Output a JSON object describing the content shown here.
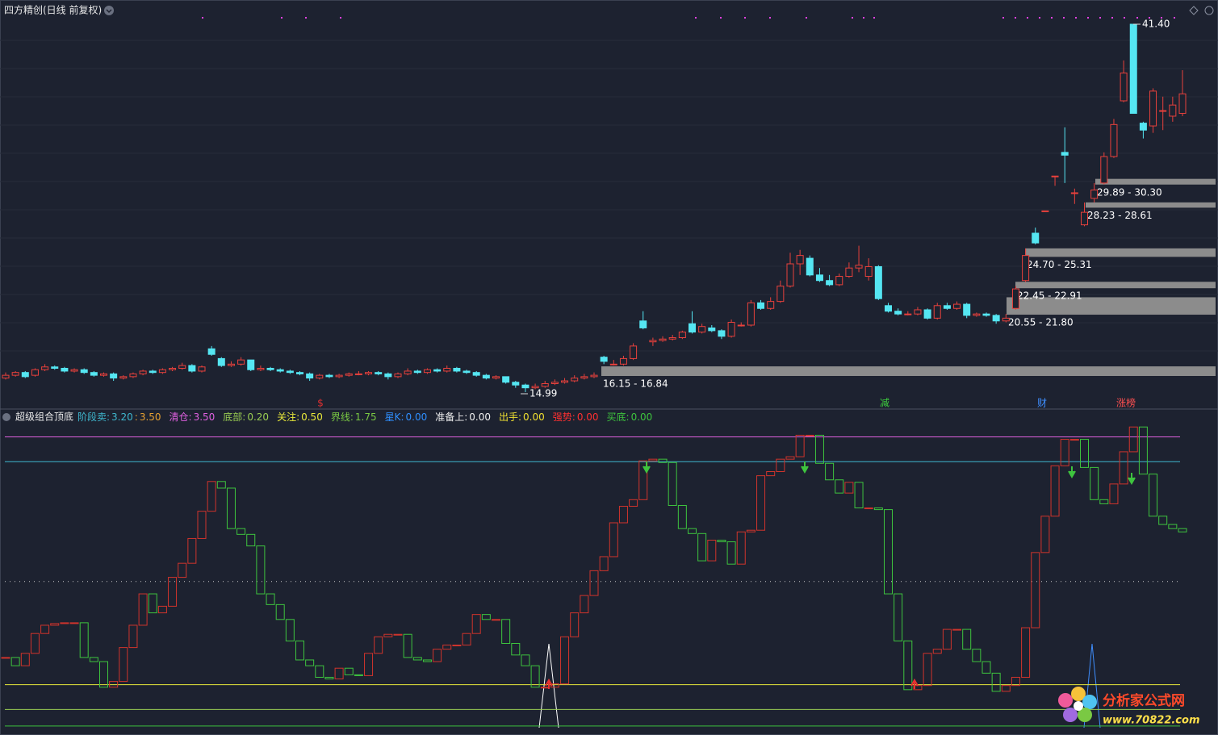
{
  "chart_data": [
    {
      "type": "candlestick",
      "title": "四方精创(日线 前复权)",
      "up_color": "#e8413c",
      "down_color": "#55e6f2",
      "zone_color": "#8c8c8c",
      "ylim": [
        14.76,
        41.98
      ],
      "candles": [
        [
          16.0,
          16.4,
          15.9,
          16.2
        ],
        [
          16.2,
          16.5,
          16.1,
          16.4
        ],
        [
          16.4,
          16.5,
          16.0,
          16.1
        ],
        [
          16.2,
          16.7,
          16.1,
          16.6
        ],
        [
          16.6,
          17.0,
          16.5,
          16.8
        ],
        [
          16.8,
          16.9,
          16.6,
          16.7
        ],
        [
          16.7,
          16.8,
          16.4,
          16.5
        ],
        [
          16.5,
          16.7,
          16.4,
          16.6
        ],
        [
          16.6,
          16.7,
          16.3,
          16.4
        ],
        [
          16.4,
          16.5,
          16.1,
          16.2
        ],
        [
          16.2,
          16.4,
          16.1,
          16.3
        ],
        [
          16.3,
          16.4,
          15.8,
          16.0
        ],
        [
          16.0,
          16.2,
          15.9,
          16.1
        ],
        [
          16.1,
          16.4,
          16.0,
          16.3
        ],
        [
          16.3,
          16.6,
          16.2,
          16.5
        ],
        [
          16.5,
          16.6,
          16.3,
          16.4
        ],
        [
          16.4,
          16.7,
          16.3,
          16.6
        ],
        [
          16.6,
          16.8,
          16.5,
          16.7
        ],
        [
          16.7,
          17.1,
          16.6,
          16.9
        ],
        [
          16.9,
          17.0,
          16.4,
          16.5
        ],
        [
          16.5,
          16.9,
          16.4,
          16.8
        ],
        [
          18.1,
          18.3,
          17.6,
          17.7
        ],
        [
          17.4,
          17.5,
          16.8,
          16.9
        ],
        [
          16.9,
          17.2,
          16.8,
          17.0
        ],
        [
          17.0,
          17.5,
          16.9,
          17.3
        ],
        [
          17.3,
          17.3,
          16.5,
          16.6
        ],
        [
          16.6,
          16.9,
          16.5,
          16.7
        ],
        [
          16.7,
          16.8,
          16.5,
          16.6
        ],
        [
          16.6,
          16.7,
          16.4,
          16.5
        ],
        [
          16.5,
          16.6,
          16.3,
          16.4
        ],
        [
          16.4,
          16.5,
          16.2,
          16.3
        ],
        [
          16.3,
          16.4,
          15.8,
          16.0
        ],
        [
          16.0,
          16.3,
          15.9,
          16.2
        ],
        [
          16.2,
          16.3,
          16.0,
          16.1
        ],
        [
          16.1,
          16.3,
          16.0,
          16.2
        ],
        [
          16.2,
          16.4,
          16.1,
          16.3
        ],
        [
          16.3,
          16.5,
          16.2,
          16.3
        ],
        [
          16.3,
          16.5,
          16.2,
          16.4
        ],
        [
          16.4,
          16.5,
          16.2,
          16.3
        ],
        [
          16.3,
          16.4,
          15.9,
          16.1
        ],
        [
          16.1,
          16.4,
          16.0,
          16.3
        ],
        [
          16.3,
          16.7,
          16.2,
          16.5
        ],
        [
          16.5,
          16.6,
          16.3,
          16.4
        ],
        [
          16.4,
          16.7,
          16.3,
          16.6
        ],
        [
          16.6,
          16.7,
          16.4,
          16.5
        ],
        [
          16.5,
          16.9,
          16.4,
          16.7
        ],
        [
          16.7,
          16.8,
          16.4,
          16.5
        ],
        [
          16.5,
          16.6,
          16.3,
          16.4
        ],
        [
          16.4,
          16.5,
          16.1,
          16.2
        ],
        [
          16.2,
          16.3,
          15.9,
          16.0
        ],
        [
          16.0,
          16.2,
          15.9,
          16.1
        ],
        [
          16.1,
          16.1,
          15.6,
          15.7
        ],
        [
          15.7,
          15.8,
          15.3,
          15.5
        ],
        [
          15.5,
          15.6,
          14.99,
          15.3
        ],
        [
          15.3,
          15.6,
          15.2,
          15.4
        ],
        [
          15.4,
          15.8,
          15.3,
          15.6
        ],
        [
          15.6,
          15.9,
          15.5,
          15.7
        ],
        [
          15.7,
          16.0,
          15.6,
          15.8
        ],
        [
          15.8,
          16.2,
          15.7,
          16.0
        ],
        [
          16.0,
          16.3,
          15.9,
          16.1
        ],
        [
          16.1,
          16.4,
          16.0,
          16.2
        ],
        [
          17.5,
          17.6,
          17.0,
          17.2
        ],
        [
          17.0,
          17.3,
          16.9,
          17.0
        ],
        [
          17.0,
          17.6,
          16.9,
          17.4
        ],
        [
          17.4,
          18.5,
          17.3,
          18.3
        ],
        [
          20.1,
          20.8,
          19.5,
          19.6
        ],
        [
          18.6,
          18.9,
          18.3,
          18.7
        ],
        [
          18.7,
          19.0,
          18.6,
          18.8
        ],
        [
          18.8,
          19.1,
          18.7,
          18.9
        ],
        [
          18.9,
          19.4,
          18.8,
          19.3
        ],
        [
          19.9,
          20.8,
          19.2,
          19.3
        ],
        [
          19.3,
          19.9,
          19.2,
          19.7
        ],
        [
          19.6,
          19.8,
          19.3,
          19.4
        ],
        [
          19.4,
          19.5,
          18.8,
          19.0
        ],
        [
          19.0,
          20.2,
          18.9,
          20.0
        ],
        [
          19.8,
          20.0,
          19.7,
          19.8
        ],
        [
          19.8,
          21.6,
          19.7,
          21.4
        ],
        [
          21.4,
          21.6,
          20.9,
          21.0
        ],
        [
          21.0,
          21.8,
          20.9,
          21.5
        ],
        [
          21.5,
          23.0,
          21.4,
          22.6
        ],
        [
          22.6,
          25.0,
          22.5,
          24.2
        ],
        [
          24.2,
          25.2,
          23.4,
          24.8
        ],
        [
          24.6,
          24.8,
          23.3,
          23.4
        ],
        [
          23.4,
          23.9,
          22.9,
          23.0
        ],
        [
          23.0,
          23.4,
          22.6,
          22.7
        ],
        [
          22.7,
          23.5,
          22.6,
          23.3
        ],
        [
          23.3,
          24.3,
          23.2,
          23.9
        ],
        [
          23.9,
          25.5,
          23.6,
          24.1
        ],
        [
          23.3,
          24.6,
          23.0,
          24.0
        ],
        [
          24.0,
          24.1,
          21.6,
          21.7
        ],
        [
          21.2,
          21.4,
          20.7,
          20.8
        ],
        [
          20.8,
          21.0,
          20.5,
          20.6
        ],
        [
          20.6,
          20.8,
          20.5,
          20.6
        ],
        [
          20.6,
          21.1,
          20.5,
          20.9
        ],
        [
          20.9,
          21.0,
          20.2,
          20.3
        ],
        [
          20.3,
          21.4,
          20.2,
          21.2
        ],
        [
          21.2,
          21.4,
          20.9,
          21.0
        ],
        [
          21.0,
          21.5,
          20.9,
          21.3
        ],
        [
          21.3,
          21.4,
          20.3,
          20.5
        ],
        [
          20.5,
          20.7,
          20.4,
          20.6
        ],
        [
          20.6,
          20.7,
          20.4,
          20.5
        ],
        [
          20.5,
          20.6,
          19.9,
          20.1
        ],
        [
          20.1,
          20.6,
          20.0,
          20.3
        ],
        [
          21.0,
          22.6,
          20.9,
          22.4
        ],
        [
          23.0,
          25.3,
          22.9,
          24.8
        ],
        [
          26.4,
          26.8,
          25.6,
          25.7
        ],
        [
          28.0,
          28.0,
          28.0,
          28.0
        ],
        [
          30.5,
          30.5,
          29.8,
          30.5
        ],
        [
          32.2,
          34.0,
          30.0,
          32.0
        ],
        [
          29.3,
          29.6,
          28.5,
          29.3
        ],
        [
          27.0,
          28.6,
          26.9,
          27.9
        ],
        [
          28.9,
          30.0,
          28.6,
          29.5
        ],
        [
          30.0,
          32.2,
          29.9,
          31.9
        ],
        [
          31.9,
          34.6,
          31.8,
          34.2
        ],
        [
          35.9,
          38.8,
          35.8,
          37.9
        ],
        [
          41.4,
          41.4,
          35.0,
          35.0
        ],
        [
          34.3,
          34.4,
          33.2,
          33.8
        ],
        [
          34.1,
          36.8,
          33.6,
          36.6
        ],
        [
          35.2,
          36.2,
          33.8,
          35.2
        ],
        [
          34.8,
          36.2,
          34.4,
          35.6
        ],
        [
          35.0,
          38.1,
          34.8,
          36.4
        ]
      ],
      "zones": [
        {
          "label": "16.15 - 16.84",
          "low": 16.15,
          "high": 16.84
        },
        {
          "label": "20.55 - 21.80",
          "low": 20.55,
          "high": 21.8
        },
        {
          "label": "22.45 - 22.91",
          "low": 22.45,
          "high": 22.91
        },
        {
          "label": "24.70 - 25.31",
          "low": 24.7,
          "high": 25.31
        },
        {
          "label": "28.23 - 28.61",
          "low": 28.23,
          "high": 28.61
        },
        {
          "label": "29.89 - 30.30",
          "low": 29.89,
          "high": 30.3
        }
      ],
      "extremes": [
        {
          "value": 41.4,
          "label": "41.40"
        },
        {
          "value": 14.99,
          "label": "14.99"
        }
      ],
      "signals": [
        {
          "text": "$",
          "color": "#e03030"
        },
        {
          "text": "减",
          "color": "#3dcc3d"
        },
        {
          "text": "财",
          "color": "#3f8fff"
        },
        {
          "text": "涨榜",
          "color": "#ff5050"
        }
      ]
    },
    {
      "type": "step",
      "title": "超级组合顶底",
      "up_color": "#d0342c",
      "down_color": "#3ec43e",
      "ylim": [
        -0.05,
        3.71
      ],
      "legend": [
        {
          "name": "阶段卖:",
          "value": {
            "value": 3.2,
            "label": "3.20"
          },
          "color": "#3fb8cf",
          "line": "solid"
        },
        {
          "name": ":",
          "value": {
            "value": 3.5,
            "label": "3.50"
          },
          "color": "#e6a032"
        },
        {
          "name": "清仓:",
          "value": {
            "value": 3.5,
            "label": "3.50"
          },
          "color": "#e060e0",
          "line": "solid"
        },
        {
          "name": "底部:",
          "value": {
            "value": 0.2,
            "label": "0.20"
          },
          "color": "#9acd52",
          "line": "solid"
        },
        {
          "name": "关注:",
          "value": {
            "value": 0.5,
            "label": "0.50"
          },
          "color": "#e8e83a",
          "line": "solid"
        },
        {
          "name": "界线:",
          "value": {
            "value": 1.75,
            "label": "1.75"
          },
          "color": "#7ac943",
          "line": "dotted"
        },
        {
          "name": "星K:",
          "value": {
            "value": 0,
            "label": "0.00"
          },
          "color": "#2f8fff"
        },
        {
          "name": "准备上:",
          "value": {
            "value": 0,
            "label": "0.00"
          },
          "color": "#f0f0f0"
        },
        {
          "name": "出手:",
          "value": {
            "value": 0,
            "label": "0.00"
          },
          "color": "#f0e030"
        },
        {
          "name": "强势:",
          "value": {
            "value": 0,
            "label": "0.00"
          },
          "color": "#ff3030"
        },
        {
          "name": "买底:",
          "value": {
            "value": 0,
            "label": "0.00"
          },
          "color": "#3ec43e",
          "line": "solid"
        }
      ],
      "values": [
        0.83,
        0.73,
        0.88,
        1.12,
        1.22,
        1.24,
        1.25,
        1.25,
        0.83,
        0.78,
        0.47,
        0.54,
        0.95,
        1.22,
        1.6,
        1.37,
        1.45,
        1.8,
        1.97,
        2.27,
        2.6,
        2.96,
        2.88,
        2.39,
        2.32,
        2.18,
        1.6,
        1.47,
        1.29,
        1.03,
        0.8,
        0.73,
        0.59,
        0.57,
        0.7,
        0.62,
        0.61,
        0.88,
        1.08,
        1.11,
        1.11,
        0.83,
        0.8,
        0.78,
        0.93,
        0.98,
        0.98,
        1.12,
        1.35,
        1.29,
        1.29,
        1.0,
        0.86,
        0.73,
        0.47,
        0.47,
        0.51,
        1.08,
        1.37,
        1.58,
        1.88,
        2.05,
        2.46,
        2.66,
        2.74,
        3.21,
        3.23,
        3.19,
        2.67,
        2.39,
        2.33,
        2.0,
        2.25,
        2.23,
        1.96,
        2.35,
        2.37,
        3.03,
        3.08,
        3.23,
        3.26,
        3.52,
        3.52,
        3.18,
        2.98,
        2.82,
        2.95,
        2.64,
        2.64,
        2.62,
        1.6,
        1.03,
        0.44,
        0.49,
        0.88,
        0.93,
        1.17,
        1.17,
        0.93,
        0.78,
        0.64,
        0.42,
        0.49,
        0.59,
        1.19,
        2.1,
        2.54,
        3.15,
        3.47,
        3.47,
        3.13,
        2.74,
        2.69,
        2.93,
        3.32,
        3.62,
        3.05,
        2.54,
        2.44,
        2.39,
        2.35
      ]
    }
  ],
  "watermark": {
    "title": "分析家公式网",
    "url": "www.70822.com"
  }
}
